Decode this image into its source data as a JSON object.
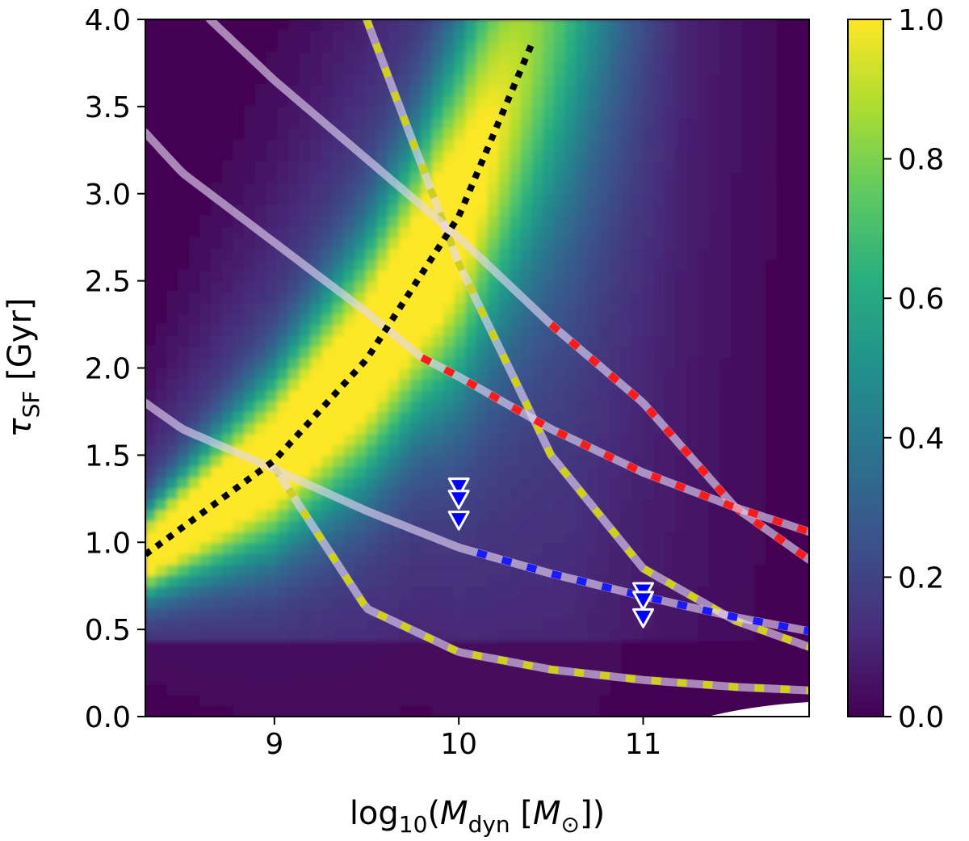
{
  "chart_data": {
    "type": "heatmap",
    "xlabel": {
      "prefix": "log",
      "sub": "10",
      "open": "(",
      "var": "M",
      "var_sub": "dyn",
      "unit_open": " [",
      "unit": "M",
      "unit_sub": "⊙",
      "close": "])"
    },
    "ylabel": {
      "var": "τ",
      "var_sub": "SF",
      "unit": " [Gyr]"
    },
    "xlim": [
      8.3,
      11.9
    ],
    "ylim": [
      0.0,
      4.0
    ],
    "x_ticks": [
      9,
      10,
      11
    ],
    "x_tick_labels": [
      "9",
      "10",
      "11"
    ],
    "y_ticks": [
      0.0,
      0.5,
      1.0,
      1.5,
      2.0,
      2.5,
      3.0,
      3.5,
      4.0
    ],
    "y_tick_labels": [
      "0.0",
      "0.5",
      "1.0",
      "1.5",
      "2.0",
      "2.5",
      "3.0",
      "3.5",
      "4.0"
    ],
    "colorbar": {
      "range": [
        0.0,
        1.0
      ],
      "ticks": [
        0.0,
        0.2,
        0.4,
        0.6,
        0.8,
        1.0
      ],
      "tick_labels": [
        "0.0",
        "0.2",
        "0.4",
        "0.6",
        "0.8",
        "1.0"
      ],
      "colormap": [
        "#440154",
        "#472d7b",
        "#3b528b",
        "#2c728e",
        "#21918c",
        "#28ae80",
        "#5ec962",
        "#addc30",
        "#fde725"
      ]
    },
    "ridge": {
      "name": "peak probability",
      "color": "#000000",
      "style": "dotted",
      "x": [
        8.3,
        9.0,
        9.5,
        10.0,
        10.4
      ],
      "y": [
        0.93,
        1.47,
        2.05,
        2.87,
        3.87
      ]
    },
    "series": [
      {
        "name": "steep yellow-dashed curve",
        "color": "#cfcf1c",
        "style": "dashed",
        "x": [
          9.5,
          9.75,
          10.0,
          10.5,
          11.0,
          11.5,
          11.9
        ],
        "y": [
          4.0,
          3.3,
          2.6,
          1.5,
          0.85,
          0.55,
          0.4
        ]
      },
      {
        "name": "lower yellow-dashed curve",
        "color": "#cfcf1c",
        "style": "dashed",
        "x": [
          9.0,
          9.5,
          10.0,
          10.5,
          11.0,
          11.5,
          11.9
        ],
        "y": [
          1.43,
          0.62,
          0.37,
          0.27,
          0.21,
          0.17,
          0.15
        ]
      },
      {
        "name": "upper red-dashed curve",
        "color": "#ff1a1a",
        "style": "dashed",
        "x": [
          8.65,
          9.0,
          9.5,
          10.0,
          10.5,
          11.0,
          11.5,
          11.9
        ],
        "y": [
          4.0,
          3.65,
          3.2,
          2.75,
          2.25,
          1.8,
          1.2,
          0.9
        ]
      },
      {
        "name": "middle red-dashed curve",
        "color": "#ff1a1a",
        "style": "dashed",
        "x": [
          8.3,
          8.5,
          9.0,
          9.5,
          9.8,
          10.0,
          10.5,
          11.0,
          11.5,
          11.9
        ],
        "y": [
          3.35,
          3.12,
          2.72,
          2.32,
          2.06,
          1.95,
          1.65,
          1.4,
          1.2,
          1.06
        ]
      },
      {
        "name": "blue-dashed curve",
        "color": "#1a1aff",
        "style": "dashed",
        "x": [
          8.3,
          8.5,
          9.0,
          9.5,
          10.0,
          10.5,
          11.0,
          11.5,
          11.9
        ],
        "y": [
          1.8,
          1.65,
          1.42,
          1.18,
          0.97,
          0.82,
          0.69,
          0.57,
          0.49
        ]
      }
    ],
    "upper_limits": [
      {
        "x": 10.0,
        "y": [
          1.32,
          1.25,
          1.13
        ],
        "color": "#0000ff"
      },
      {
        "x": 11.0,
        "y": [
          0.72,
          0.67,
          0.57
        ],
        "color": "#0000ff"
      }
    ]
  }
}
